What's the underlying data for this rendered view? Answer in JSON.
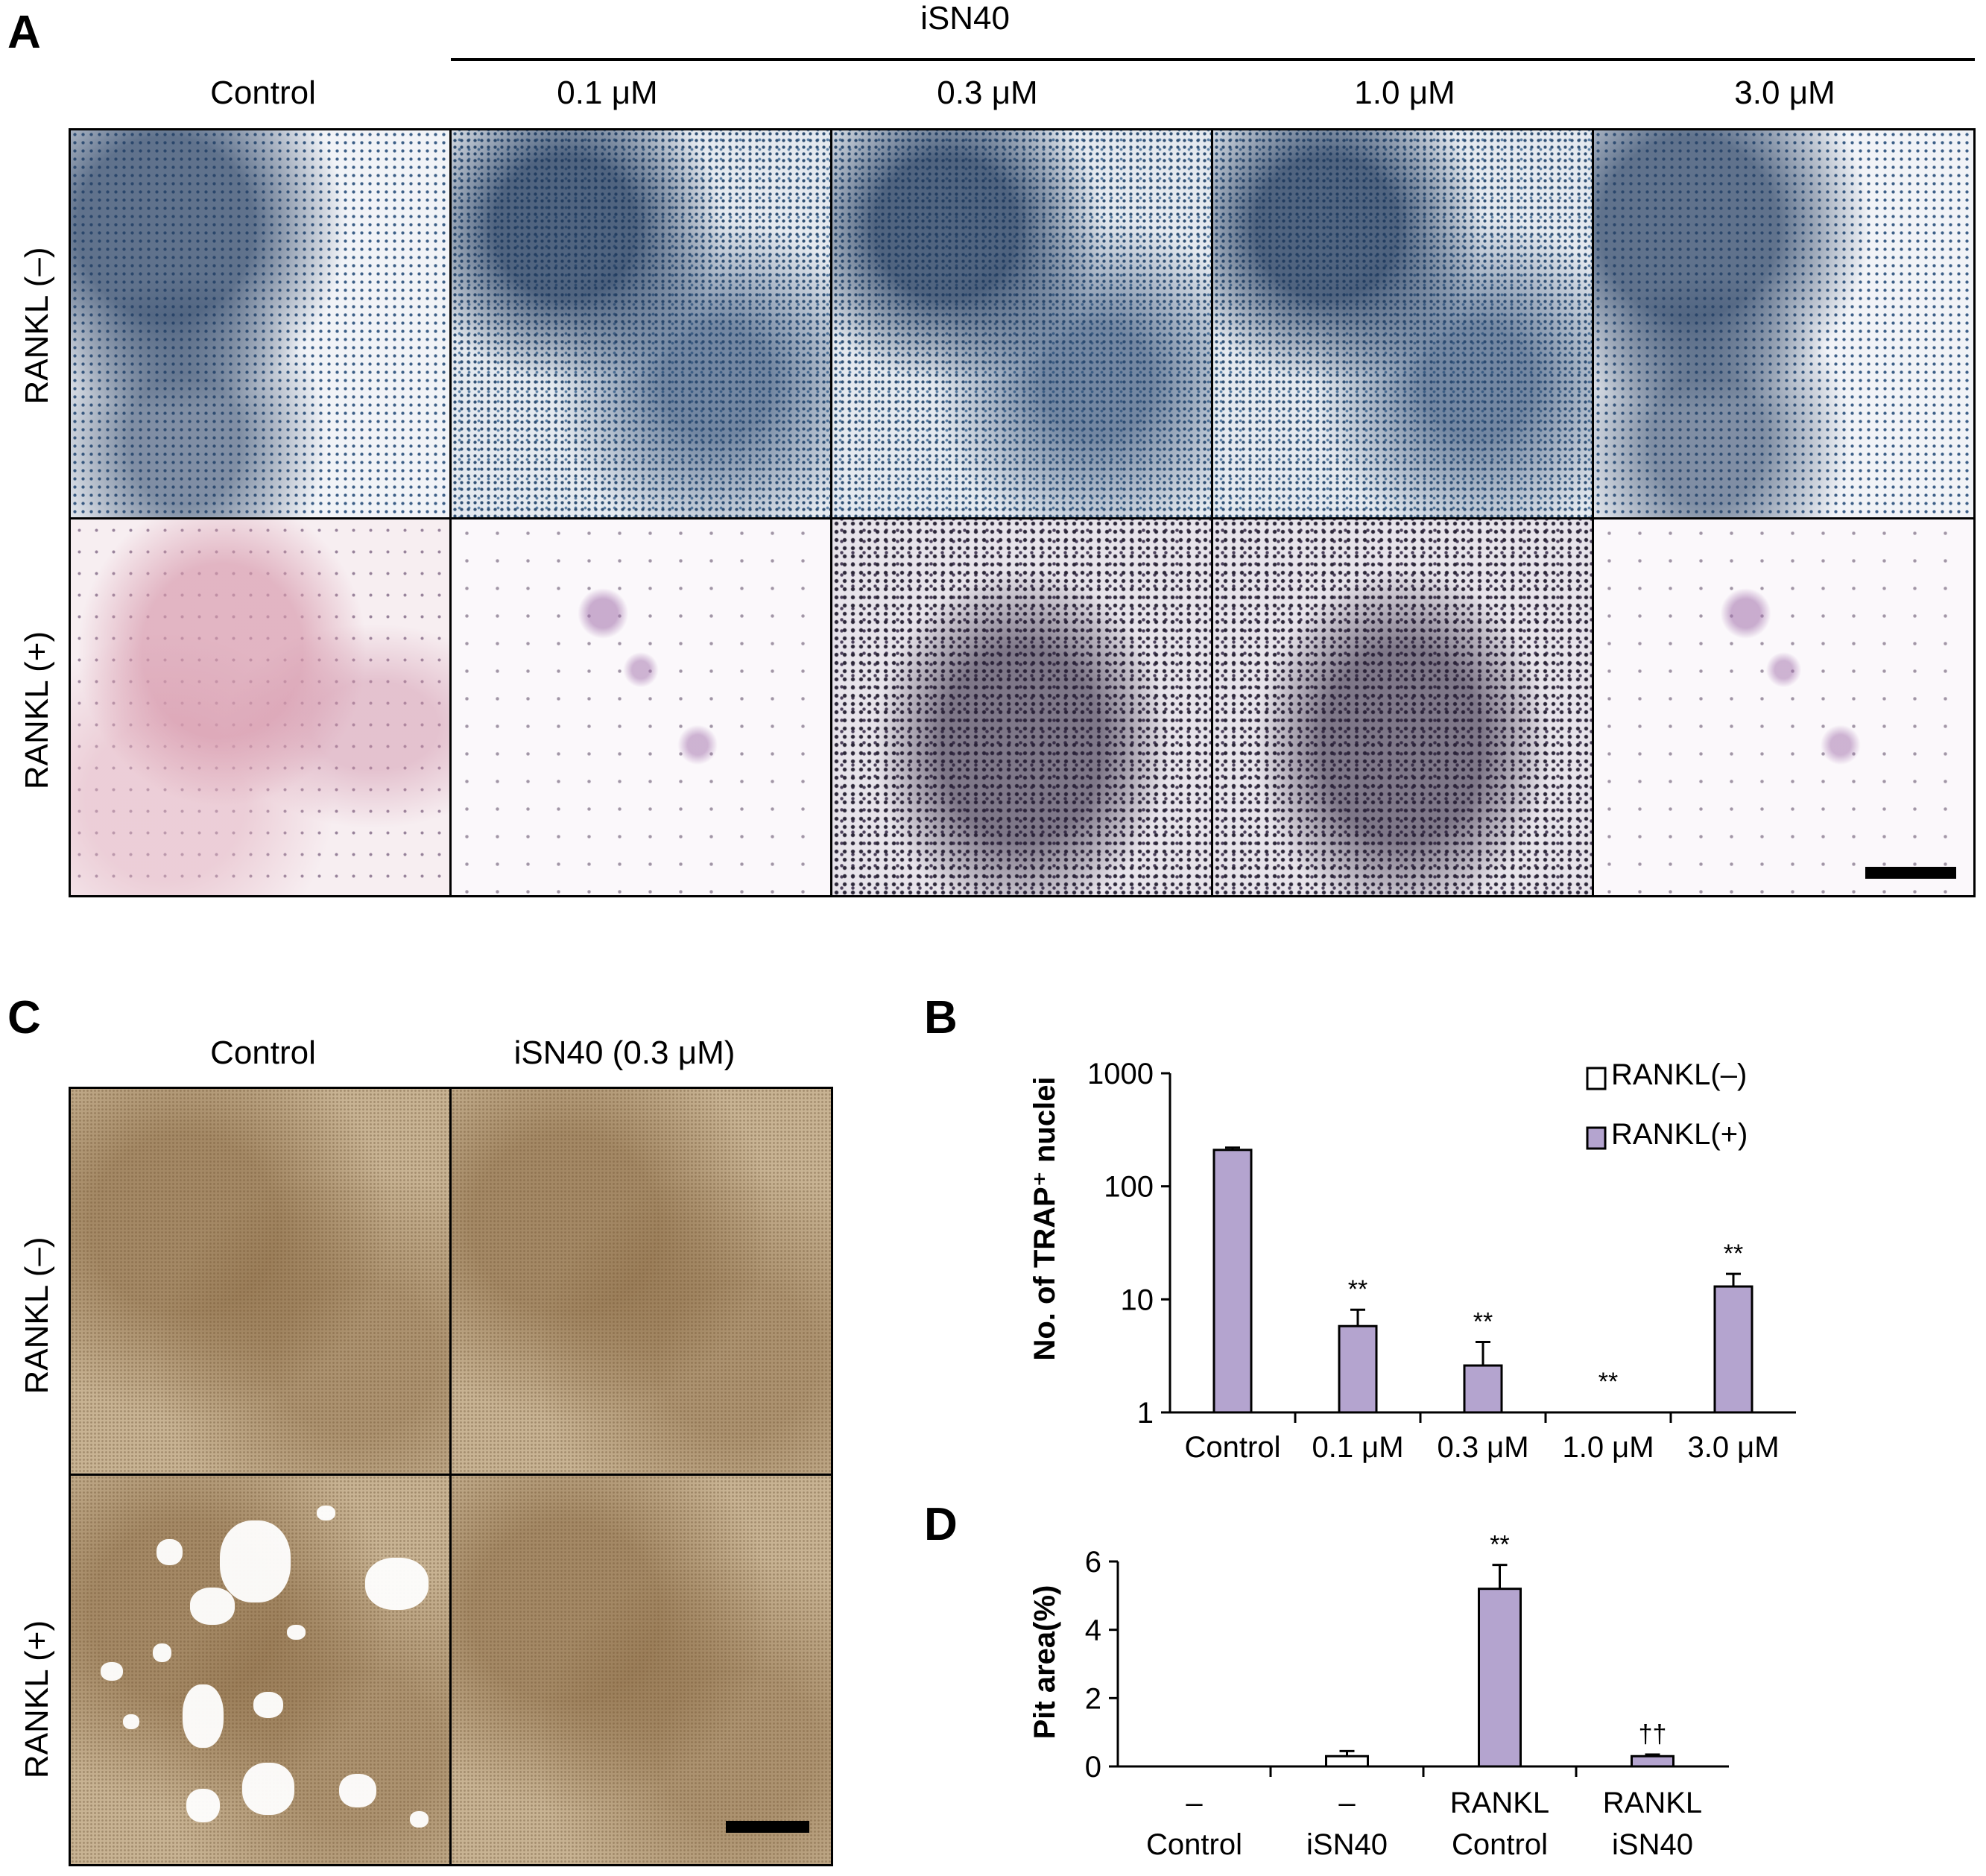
{
  "panel_a": {
    "letter": "A",
    "group_label": "iSN40",
    "columns": [
      "Control",
      "0.1 μM",
      "0.3 μM",
      "1.0 μM",
      "3.0 μM"
    ],
    "rows": [
      "RANKL (–)",
      "RANKL (+)"
    ]
  },
  "panel_c": {
    "letter": "C",
    "columns": [
      "Control",
      "iSN40 (0.3 μM)"
    ],
    "rows": [
      "RANKL (–)",
      "RANKL (+)"
    ]
  },
  "chart_data": [
    {
      "panel": "B",
      "type": "bar",
      "ylabel": "No. of TRAP⁺ nuclei",
      "yscale": "log",
      "ylim": [
        1,
        1000
      ],
      "yticks": [
        "1",
        "10",
        "100",
        "1000"
      ],
      "categories": [
        "Control",
        "0.1 μM",
        "0.3 μM",
        "1.0 μM",
        "3.0 μM"
      ],
      "series": [
        {
          "name": "RANKL(–)",
          "values": [
            0,
            0,
            0,
            0,
            0
          ],
          "color": "#ffffff"
        },
        {
          "name": "RANKL(+)",
          "values": [
            210,
            5.8,
            2.6,
            0,
            13
          ],
          "errors": [
            10,
            2.3,
            1.6,
            0,
            3.8
          ],
          "color": "#b4a4cf"
        }
      ],
      "annotations": [
        "",
        "**",
        "**",
        "**",
        "**"
      ],
      "legend": "top-right"
    },
    {
      "panel": "D",
      "type": "bar",
      "ylabel": "Pit area(%)",
      "ylim": [
        0,
        6
      ],
      "yticks": [
        "0",
        "2",
        "4",
        "6"
      ],
      "categories": [
        [
          "–",
          "Control"
        ],
        [
          "–",
          "iSN40"
        ],
        [
          "RANKL",
          "Control"
        ],
        [
          "RANKL",
          "iSN40"
        ]
      ],
      "values": [
        0,
        0.3,
        5.2,
        0.3
      ],
      "errors": [
        0,
        0.15,
        0.7,
        0.05
      ],
      "fills": [
        "#ffffff",
        "#ffffff",
        "#b4a4cf",
        "#b4a4cf"
      ],
      "annotations": [
        "",
        "",
        "**",
        "††"
      ]
    }
  ],
  "colors": {
    "bar_fill": "#b4a4cf",
    "axis": "#000000"
  }
}
